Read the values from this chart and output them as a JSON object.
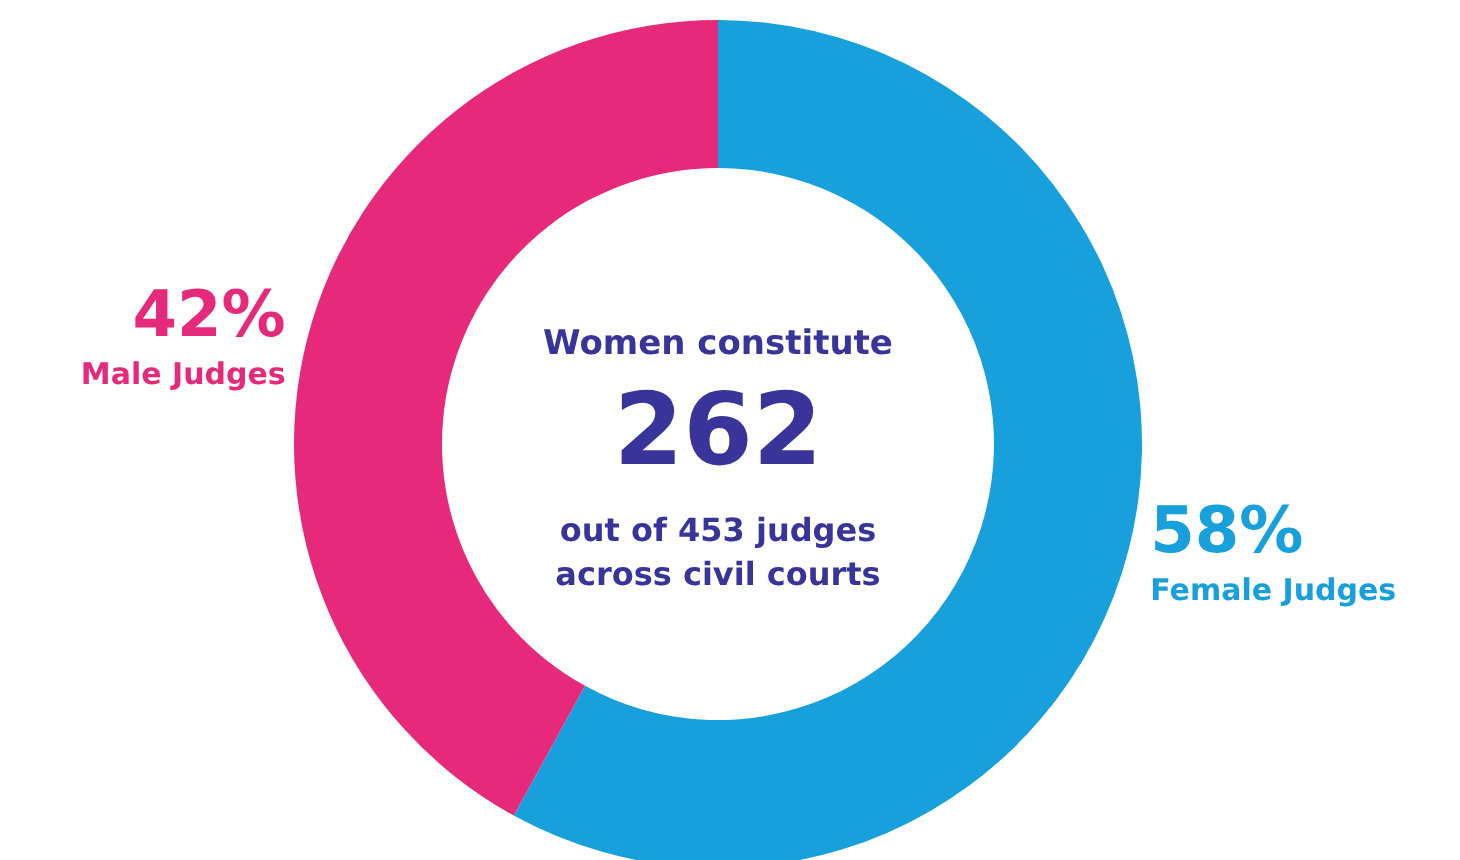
{
  "chart_data": {
    "type": "donut",
    "categories": [
      "Female Judges",
      "Male Judges"
    ],
    "values": [
      58,
      42
    ],
    "value_labels": [
      "58%",
      "42%"
    ],
    "colors": [
      "#17a0db",
      "#e6297a"
    ],
    "annotations": [
      "Women constitute",
      "262",
      "out of 453 judges\nacross civil courts"
    ],
    "legend": false
  }
}
